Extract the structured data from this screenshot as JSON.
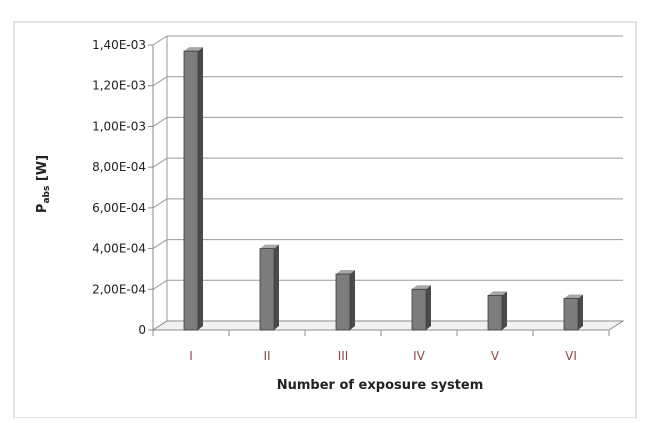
{
  "chart_data": {
    "type": "bar",
    "title": "",
    "xlabel": "Number of exposure system",
    "ylabel": {
      "main": "P",
      "subscript": "abs",
      "unit": " [W]"
    },
    "categories": [
      "I",
      "II",
      "III",
      "IV",
      "V",
      "VI"
    ],
    "values": [
      0.00137,
      0.0004,
      0.000275,
      0.0002,
      0.00017,
      0.000155
    ],
    "ylim": [
      0,
      0.0014
    ],
    "yticks": [
      0,
      0.0002,
      0.0004,
      0.0006,
      0.0008,
      0.001,
      0.0012,
      0.0014
    ],
    "ytick_labels": [
      "0",
      "2,00E-04",
      "4,00E-04",
      "6,00E-04",
      "8,00E-04",
      "1,00E-03",
      "1,20E-03",
      "1,40E-03"
    ],
    "grid": true,
    "legend": "none",
    "colors": {
      "bar_front": "#7d7d7d",
      "bar_side": "#4a4a4a",
      "bar_top": "#a8a8a8",
      "gridline": "#9a9a9a",
      "axis": "#8c8c8c",
      "x_tick_label": "#8a4a4a",
      "text": "#222222"
    }
  }
}
